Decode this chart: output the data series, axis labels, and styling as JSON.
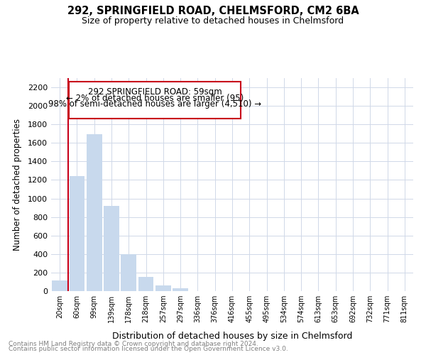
{
  "title1": "292, SPRINGFIELD ROAD, CHELMSFORD, CM2 6BA",
  "title2": "Size of property relative to detached houses in Chelmsford",
  "xlabel": "Distribution of detached houses by size in Chelmsford",
  "ylabel": "Number of detached properties",
  "annotation_line1": "292 SPRINGFIELD ROAD: 59sqm",
  "annotation_line2": "← 2% of detached houses are smaller (95)",
  "annotation_line3": "98% of semi-detached houses are larger (4,510) →",
  "bar_color": "#c8d9ed",
  "highlight_color": "#c8001a",
  "categories": [
    "20sqm",
    "60sqm",
    "99sqm",
    "139sqm",
    "178sqm",
    "218sqm",
    "257sqm",
    "297sqm",
    "336sqm",
    "376sqm",
    "416sqm",
    "455sqm",
    "495sqm",
    "534sqm",
    "574sqm",
    "613sqm",
    "653sqm",
    "692sqm",
    "732sqm",
    "771sqm",
    "811sqm"
  ],
  "values": [
    115,
    1245,
    1695,
    920,
    400,
    150,
    65,
    30,
    0,
    0,
    0,
    0,
    0,
    0,
    0,
    0,
    0,
    0,
    0,
    0,
    0
  ],
  "vline_x": 0.5,
  "ylim": [
    0,
    2300
  ],
  "yticks": [
    0,
    200,
    400,
    600,
    800,
    1000,
    1200,
    1400,
    1600,
    1800,
    2000,
    2200
  ],
  "footer1": "Contains HM Land Registry data © Crown copyright and database right 2024.",
  "footer2": "Contains public sector information licensed under the Open Government Licence v3.0.",
  "bg_color": "#ffffff",
  "grid_color": "#d0d8e8"
}
